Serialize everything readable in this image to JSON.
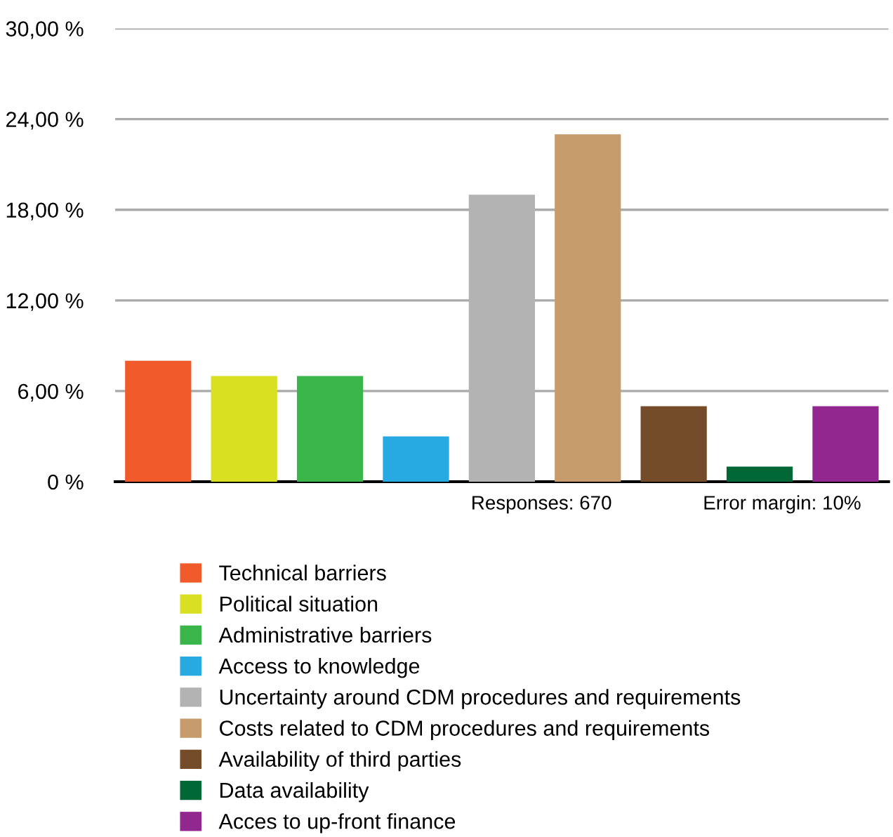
{
  "chart_data": {
    "type": "bar",
    "categories": [
      null,
      null,
      null,
      null,
      null,
      null,
      null,
      null,
      null
    ],
    "series": [
      {
        "name": "Technical barriers",
        "color": "#f15a2b",
        "values": [
          8,
          null,
          null,
          null,
          null,
          null,
          null,
          null,
          null
        ]
      },
      {
        "name": "Political situation",
        "color": "#d9e021",
        "values": [
          null,
          7,
          null,
          null,
          null,
          null,
          null,
          null,
          null
        ]
      },
      {
        "name": "Administrative barriers",
        "color": "#39b54a",
        "values": [
          null,
          null,
          7,
          null,
          null,
          null,
          null,
          null,
          null
        ]
      },
      {
        "name": "Access to knowledge",
        "color": "#27aae1",
        "values": [
          null,
          null,
          null,
          3,
          null,
          null,
          null,
          null,
          null
        ]
      },
      {
        "name": "Uncertainty around CDM procedures and requirements",
        "color": "#b3b3b3",
        "values": [
          null,
          null,
          null,
          null,
          19,
          null,
          null,
          null,
          null
        ]
      },
      {
        "name": "Costs related to CDM procedures and requirements",
        "color": "#c69c6d",
        "values": [
          null,
          null,
          null,
          null,
          null,
          23,
          null,
          null,
          null
        ]
      },
      {
        "name": "Availability of third parties",
        "color": "#754c29",
        "values": [
          null,
          null,
          null,
          null,
          null,
          null,
          5,
          null,
          null
        ]
      },
      {
        "name": "Data availability",
        "color": "#006837",
        "values": [
          null,
          null,
          null,
          null,
          null,
          null,
          null,
          1,
          null
        ]
      },
      {
        "name": "Acces to up-front finance",
        "color": "#92278f",
        "values": [
          null,
          null,
          null,
          null,
          null,
          null,
          null,
          null,
          5
        ]
      }
    ],
    "ylim": [
      0,
      30
    ],
    "yticks": [
      {
        "value": 0,
        "label": "0 %"
      },
      {
        "value": 6,
        "label": "6,00 %"
      },
      {
        "value": 12,
        "label": "12,00 %"
      },
      {
        "value": 18,
        "label": "18,00 %"
      },
      {
        "value": 24,
        "label": "24,00 %"
      },
      {
        "value": 30,
        "label": "30,00 %"
      }
    ],
    "grid": "y",
    "legend": "bottom",
    "annotations": [
      "Responses: 670",
      "Error margin: 10%"
    ]
  }
}
